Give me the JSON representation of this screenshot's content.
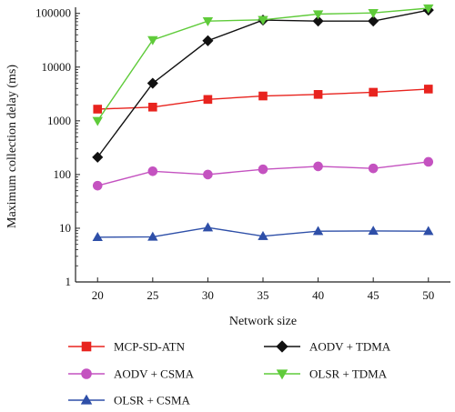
{
  "chart_data": {
    "type": "line",
    "title": "",
    "xlabel": "Network size",
    "ylabel": "Maximum collection delay (ms)",
    "yscale": "log",
    "x": [
      20,
      25,
      30,
      35,
      40,
      45,
      50
    ],
    "xlim": [
      18,
      52
    ],
    "ylim": [
      1,
      130000
    ],
    "x_ticks": [
      20,
      25,
      30,
      35,
      40,
      45,
      50
    ],
    "y_ticks": [
      1,
      10,
      100,
      1000,
      10000,
      100000
    ],
    "y_tick_labels": [
      "1",
      "10",
      "100",
      "1000",
      "10000",
      "100000"
    ],
    "grid": false,
    "legend_position": "below",
    "series": [
      {
        "name": "MCP-SD-ATN",
        "color": "#e8231e",
        "marker": "square",
        "values": [
          1650,
          1800,
          2500,
          2900,
          3100,
          3400,
          3900
        ]
      },
      {
        "name": "AODV + CSMA",
        "color": "#c452c0",
        "marker": "circle",
        "values": [
          62,
          115,
          100,
          125,
          142,
          130,
          172
        ]
      },
      {
        "name": "OLSR + CSMA",
        "color": "#2e4fa8",
        "marker": "triangle-up",
        "values": [
          6.8,
          6.9,
          10.3,
          7.1,
          8.8,
          8.9,
          8.8
        ]
      },
      {
        "name": "AODV + TDMA",
        "color": "#111111",
        "marker": "diamond",
        "values": [
          210,
          5000,
          31000,
          75000,
          72000,
          72000,
          115000
        ]
      },
      {
        "name": "OLSR + TDMA",
        "color": "#5fcb3a",
        "marker": "triangle-down",
        "values": [
          1000,
          32000,
          72000,
          76000,
          97000,
          102000,
          125000
        ]
      }
    ]
  }
}
